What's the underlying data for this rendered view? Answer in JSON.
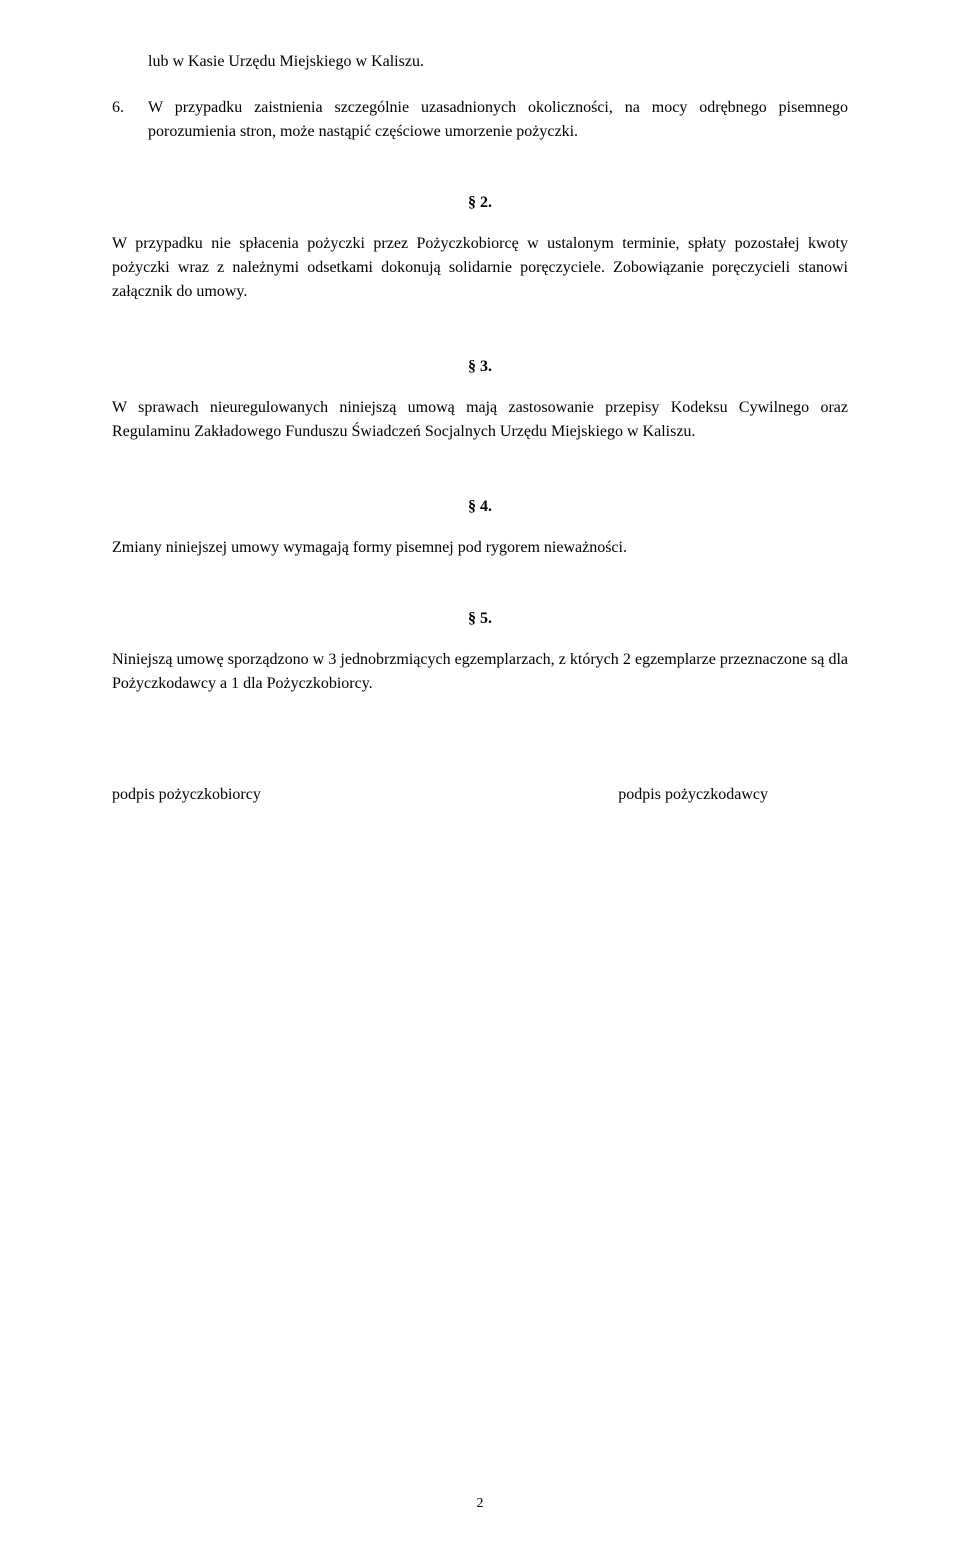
{
  "document": {
    "font_family": "Times New Roman",
    "base_font_size": 16,
    "heading_font_weight": "bold",
    "text_color": "#000000",
    "background_color": "#ffffff",
    "text_align": "justify",
    "line_height": 1.5,
    "indented_line": "lub w Kasie Urzędu Miejskiego w Kaliszu.",
    "numbered_item": {
      "number": "6.",
      "text": "W przypadku zaistnienia szczególnie uzasadnionych okoliczności, na mocy odrębnego pisemnego porozumienia stron, może nastąpić częściowe umorzenie pożyczki."
    },
    "sections": [
      {
        "heading": "§ 2.",
        "body": "W przypadku nie spłacenia pożyczki przez Pożyczkobiorcę w ustalonym terminie, spłaty pozostałej kwoty pożyczki wraz z należnymi odsetkami dokonują solidarnie poręczyciele. Zobowiązanie poręczycieli stanowi załącznik do umowy."
      },
      {
        "heading": "§ 3.",
        "body": "W sprawach nieuregulowanych niniejszą umową mają zastosowanie przepisy Kodeksu Cywilnego oraz Regulaminu Zakładowego Funduszu Świadczeń Socjalnych Urzędu Miejskiego w Kaliszu."
      },
      {
        "heading": "§ 4.",
        "body": "Zmiany niniejszej umowy wymagają formy pisemnej pod rygorem nieważności."
      },
      {
        "heading": "§ 5.",
        "body": "Niniejszą umowę sporządzono w 3 jednobrzmiących egzemplarzach, z których 2 egzemplarze przeznaczone są dla Pożyczkodawcy a 1 dla Pożyczkobiorcy."
      }
    ],
    "signatures": {
      "left": "podpis  pożyczkobiorcy",
      "right": "podpis pożyczkodawcy"
    },
    "page_number": "2"
  }
}
